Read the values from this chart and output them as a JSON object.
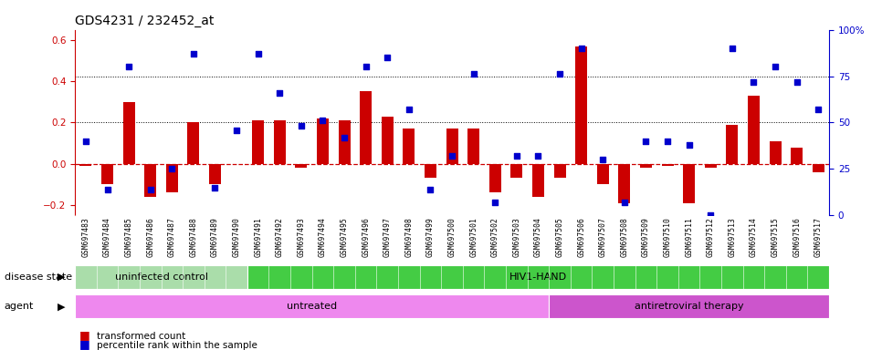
{
  "title": "GDS4231 / 232452_at",
  "samples": [
    "GSM697483",
    "GSM697484",
    "GSM697485",
    "GSM697486",
    "GSM697487",
    "GSM697488",
    "GSM697489",
    "GSM697490",
    "GSM697491",
    "GSM697492",
    "GSM697493",
    "GSM697494",
    "GSM697495",
    "GSM697496",
    "GSM697497",
    "GSM697498",
    "GSM697499",
    "GSM697500",
    "GSM697501",
    "GSM697502",
    "GSM697503",
    "GSM697504",
    "GSM697505",
    "GSM697506",
    "GSM697507",
    "GSM697508",
    "GSM697509",
    "GSM697510",
    "GSM697511",
    "GSM697512",
    "GSM697513",
    "GSM697514",
    "GSM697515",
    "GSM697516",
    "GSM697517"
  ],
  "bar_values": [
    -0.01,
    -0.1,
    0.3,
    -0.16,
    -0.14,
    0.2,
    -0.1,
    0.0,
    0.21,
    0.21,
    -0.02,
    0.22,
    0.21,
    0.35,
    0.23,
    0.17,
    -0.07,
    0.17,
    0.17,
    -0.14,
    -0.07,
    -0.16,
    -0.07,
    0.57,
    -0.1,
    -0.19,
    -0.02,
    -0.01,
    -0.19,
    -0.02,
    0.19,
    0.33,
    0.11,
    0.08,
    -0.04
  ],
  "dot_percentiles": [
    40,
    14,
    80,
    14,
    25,
    87,
    15,
    46,
    87,
    66,
    48,
    51,
    42,
    80,
    85,
    57,
    14,
    32,
    76,
    7,
    32,
    32,
    76,
    90,
    30,
    7,
    40,
    40,
    38,
    0,
    90,
    72,
    80,
    72,
    57
  ],
  "ylim_left": [
    -0.25,
    0.65
  ],
  "ylim_right": [
    0,
    100
  ],
  "bar_color": "#cc0000",
  "dot_color": "#0000cc",
  "zero_line_color": "#cc0000",
  "bg_color": "#ffffff",
  "disease_state_groups": [
    {
      "label": "uninfected control",
      "start": 0,
      "end": 8,
      "color": "#aaddaa"
    },
    {
      "label": "HIV1-HAND",
      "start": 8,
      "end": 35,
      "color": "#44cc44"
    }
  ],
  "agent_groups": [
    {
      "label": "untreated",
      "start": 0,
      "end": 22,
      "color": "#ee88ee"
    },
    {
      "label": "antiretroviral therapy",
      "start": 22,
      "end": 35,
      "color": "#cc55cc"
    }
  ],
  "legend_labels": [
    "transformed count",
    "percentile rank within the sample"
  ],
  "disease_state_label": "disease state",
  "agent_label": "agent",
  "left_yticks": [
    -0.2,
    0.0,
    0.2,
    0.4,
    0.6
  ],
  "right_yticks": [
    0,
    25,
    50,
    75,
    100
  ],
  "right_yticklabels": [
    "0",
    "25",
    "50",
    "75",
    "100%"
  ]
}
